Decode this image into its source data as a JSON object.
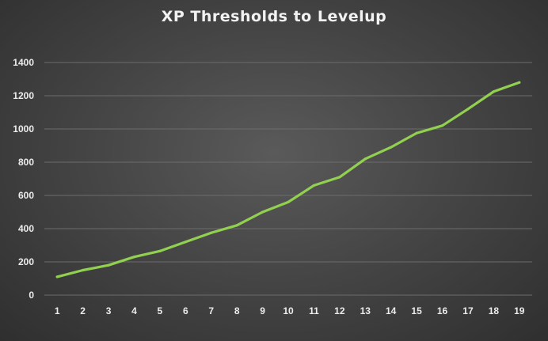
{
  "chart_data": {
    "type": "line",
    "title": "XP Thresholds to Levelup",
    "xlabel": "",
    "ylabel": "",
    "x": [
      1,
      2,
      3,
      4,
      5,
      6,
      7,
      8,
      9,
      10,
      11,
      12,
      13,
      14,
      15,
      16,
      17,
      18,
      19
    ],
    "series": [
      {
        "values": [
          110,
          150,
          180,
          230,
          265,
          320,
          375,
          420,
          500,
          560,
          660,
          710,
          820,
          890,
          975,
          1020,
          1120,
          1225,
          1280
        ],
        "color": "#92d050"
      }
    ],
    "ylim": [
      0,
      1400
    ],
    "yticks": [
      0,
      200,
      400,
      600,
      800,
      1000,
      1200,
      1400
    ],
    "grid": true,
    "legend": "none"
  }
}
